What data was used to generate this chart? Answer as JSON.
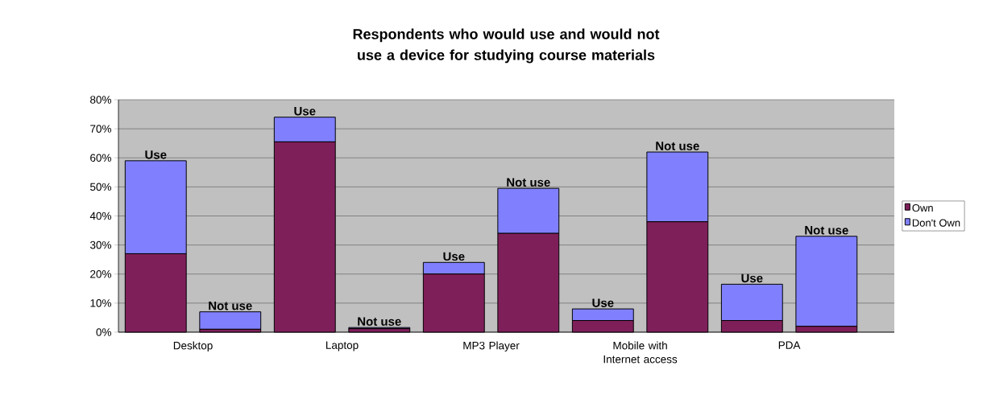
{
  "chart_data": {
    "type": "bar",
    "title": "Respondents who would use and would not use a device for studying course materials",
    "categories": [
      "Desktop",
      null,
      "Laptop",
      null,
      "MP3 Player",
      null,
      "Mobile with Internet access",
      null,
      "PDA",
      null
    ],
    "series": [
      {
        "name": "Own",
        "color": "#7f1f5a",
        "values": [
          27,
          1,
          65.5,
          1.2,
          20,
          34,
          4,
          38,
          4,
          2
        ]
      },
      {
        "name": "Don't Own",
        "color": "#8080ff",
        "values": [
          32,
          6,
          8.5,
          0.4,
          4,
          15.5,
          4,
          24,
          12.5,
          31
        ],
        "value_labels": [
          "Use",
          "Not use",
          "Use",
          "Not use",
          "Use",
          "Not use",
          "Use",
          "Not use",
          "Use",
          "Not use"
        ]
      }
    ],
    "stacked": true,
    "ylim": [
      0,
      80
    ],
    "yticks": [
      {
        "value": 0,
        "label": "0%"
      },
      {
        "value": 10,
        "label": "10%"
      },
      {
        "value": 20,
        "label": "20%"
      },
      {
        "value": 30,
        "label": "30%"
      },
      {
        "value": 40,
        "label": "40%"
      },
      {
        "value": 50,
        "label": "50%"
      },
      {
        "value": 60,
        "label": "60%"
      },
      {
        "value": 70,
        "label": "70%"
      },
      {
        "value": 80,
        "label": "80%"
      }
    ],
    "grid": "y",
    "legend": "right"
  }
}
